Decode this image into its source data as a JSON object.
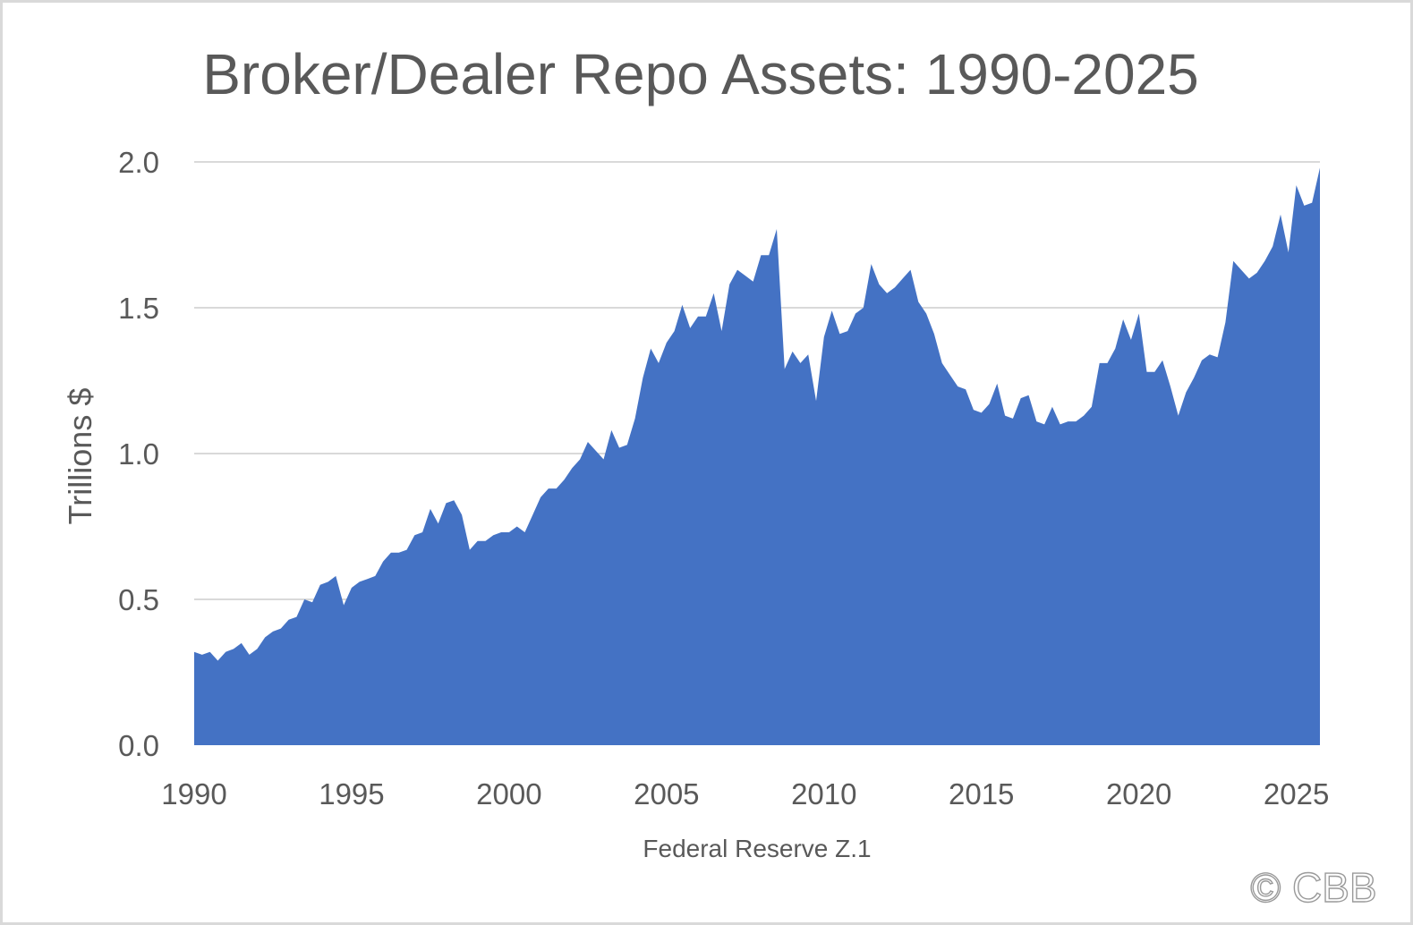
{
  "chart_data": {
    "type": "area",
    "title": "Broker/Dealer Repo Assets: 1990-2025",
    "xlabel": "Federal Reserve Z.1",
    "ylabel": "Trillions $",
    "ylim": [
      0,
      2.0
    ],
    "xlim": [
      1990,
      2025.75
    ],
    "yticks": [
      "0.0",
      "0.5",
      "1.0",
      "1.5",
      "2.0"
    ],
    "xticks": [
      "1990",
      "1995",
      "2000",
      "2005",
      "2010",
      "2015",
      "2020",
      "2025"
    ],
    "grid": true,
    "color": "#4472c4",
    "watermark": "© CBB",
    "series": [
      {
        "x": [
          1990.0,
          1990.25,
          1990.5,
          1990.75,
          1991.0,
          1991.25,
          1991.5,
          1991.75,
          1992.0,
          1992.25,
          1992.5,
          1992.75,
          1993.0,
          1993.25,
          1993.5,
          1993.75,
          1994.0,
          1994.25,
          1994.5,
          1994.75,
          1995.0,
          1995.25,
          1995.5,
          1995.75,
          1996.0,
          1996.25,
          1996.5,
          1996.75,
          1997.0,
          1997.25,
          1997.5,
          1997.75,
          1998.0,
          1998.25,
          1998.5,
          1998.75,
          1999.0,
          1999.25,
          1999.5,
          1999.75,
          2000.0,
          2000.25,
          2000.5,
          2000.75,
          2001.0,
          2001.25,
          2001.5,
          2001.75,
          2002.0,
          2002.25,
          2002.5,
          2002.75,
          2003.0,
          2003.25,
          2003.5,
          2003.75,
          2004.0,
          2004.25,
          2004.5,
          2004.75,
          2005.0,
          2005.25,
          2005.5,
          2005.75,
          2006.0,
          2006.25,
          2006.5,
          2006.75,
          2007.0,
          2007.25,
          2007.5,
          2007.75,
          2008.0,
          2008.25,
          2008.5,
          2008.75,
          2009.0,
          2009.25,
          2009.5,
          2009.75,
          2010.0,
          2010.25,
          2010.5,
          2010.75,
          2011.0,
          2011.25,
          2011.5,
          2011.75,
          2012.0,
          2012.25,
          2012.5,
          2012.75,
          2013.0,
          2013.25,
          2013.5,
          2013.75,
          2014.0,
          2014.25,
          2014.5,
          2014.75,
          2015.0,
          2015.25,
          2015.5,
          2015.75,
          2016.0,
          2016.25,
          2016.5,
          2016.75,
          2017.0,
          2017.25,
          2017.5,
          2017.75,
          2018.0,
          2018.25,
          2018.5,
          2018.75,
          2019.0,
          2019.25,
          2019.5,
          2019.75,
          2020.0,
          2020.25,
          2020.5,
          2020.75,
          2021.0,
          2021.25,
          2021.5,
          2021.75,
          2022.0,
          2022.25,
          2022.5,
          2022.75,
          2023.0,
          2023.25,
          2023.5,
          2023.75,
          2024.0,
          2024.25,
          2024.5,
          2024.75,
          2025.0,
          2025.25,
          2025.5,
          2025.75
        ],
        "values": [
          0.32,
          0.31,
          0.32,
          0.29,
          0.32,
          0.33,
          0.35,
          0.31,
          0.33,
          0.37,
          0.39,
          0.4,
          0.43,
          0.44,
          0.5,
          0.49,
          0.55,
          0.56,
          0.58,
          0.48,
          0.54,
          0.56,
          0.57,
          0.58,
          0.63,
          0.66,
          0.66,
          0.67,
          0.72,
          0.73,
          0.81,
          0.76,
          0.83,
          0.84,
          0.79,
          0.67,
          0.7,
          0.7,
          0.72,
          0.73,
          0.73,
          0.75,
          0.73,
          0.79,
          0.85,
          0.88,
          0.88,
          0.91,
          0.95,
          0.98,
          1.04,
          1.01,
          0.98,
          1.08,
          1.02,
          1.03,
          1.12,
          1.26,
          1.36,
          1.31,
          1.38,
          1.42,
          1.51,
          1.43,
          1.47,
          1.47,
          1.55,
          1.42,
          1.58,
          1.63,
          1.61,
          1.59,
          1.68,
          1.68,
          1.77,
          1.29,
          1.35,
          1.31,
          1.34,
          1.18,
          1.4,
          1.49,
          1.41,
          1.42,
          1.48,
          1.5,
          1.65,
          1.58,
          1.55,
          1.57,
          1.6,
          1.63,
          1.52,
          1.48,
          1.41,
          1.31,
          1.27,
          1.23,
          1.22,
          1.15,
          1.14,
          1.17,
          1.24,
          1.13,
          1.12,
          1.19,
          1.2,
          1.11,
          1.1,
          1.16,
          1.1,
          1.11,
          1.11,
          1.13,
          1.16,
          1.31,
          1.31,
          1.36,
          1.46,
          1.39,
          1.48,
          1.28,
          1.28,
          1.32,
          1.23,
          1.13,
          1.21,
          1.26,
          1.32,
          1.34,
          1.33,
          1.45,
          1.66,
          1.63,
          1.6,
          1.62,
          1.66,
          1.71,
          1.82,
          1.69,
          1.92,
          1.85,
          1.86,
          1.98
        ]
      }
    ]
  }
}
